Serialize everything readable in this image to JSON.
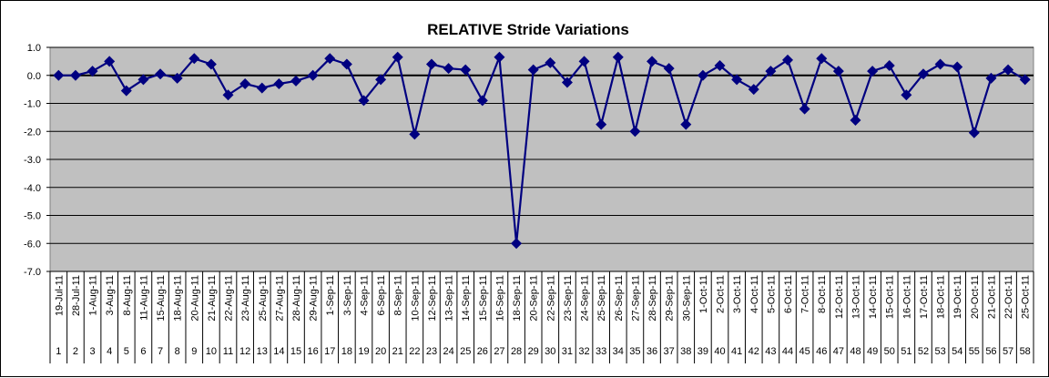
{
  "chart_data": {
    "type": "line",
    "title": "RELATIVE Stride Variations",
    "ylim": [
      -7.0,
      1.0
    ],
    "y_ticks": [
      "1.0",
      "0.0",
      "-1.0",
      "-2.0",
      "-3.0",
      "-4.0",
      "-5.0",
      "-6.0",
      "-7.0"
    ],
    "grid": true,
    "colors": {
      "plot_background": "#c0c0c0",
      "series_line": "#000080",
      "marker": "#000080",
      "gridline": "#000000"
    },
    "categories": [
      "19-Jul-11",
      "28-Jul-11",
      "1-Aug-11",
      "3-Aug-11",
      "8-Aug-11",
      "11-Aug-11",
      "15-Aug-11",
      "18-Aug-11",
      "20-Aug-11",
      "21-Aug-11",
      "22-Aug-11",
      "23-Aug-11",
      "25-Aug-11",
      "27-Aug-11",
      "28-Aug-11",
      "29-Aug-11",
      "1-Sep-11",
      "3-Sep-11",
      "4-Sep-11",
      "6-Sep-11",
      "8-Sep-11",
      "10-Sep-11",
      "12-Sep-11",
      "13-Sep-11",
      "14-Sep-11",
      "15-Sep-11",
      "16-Sep-11",
      "18-Sep-11",
      "20-Sep-11",
      "22-Sep-11",
      "23-Sep-11",
      "24-Sep-11",
      "25-Sep-11",
      "26-Sep-11",
      "27-Sep-11",
      "28-Sep-11",
      "29-Sep-11",
      "30-Sep-11",
      "1-Oct-11",
      "2-Oct-11",
      "3-Oct-11",
      "4-Oct-11",
      "5-Oct-11",
      "6-Oct-11",
      "7-Oct-11",
      "8-Oct-11",
      "12-Oct-11",
      "13-Oct-11",
      "14-Oct-11",
      "15-Oct-11",
      "16-Oct-11",
      "17-Oct-11",
      "18-Oct-11",
      "19-Oct-11",
      "20-Oct-11",
      "21-Oct-11",
      "22-Oct-11",
      "25-Oct-11"
    ],
    "index_labels": [
      "1",
      "2",
      "3",
      "4",
      "5",
      "6",
      "7",
      "8",
      "9",
      "10",
      "11",
      "12",
      "13",
      "14",
      "15",
      "16",
      "17",
      "18",
      "19",
      "20",
      "21",
      "22",
      "23",
      "24",
      "25",
      "26",
      "27",
      "28",
      "29",
      "30",
      "31",
      "32",
      "33",
      "34",
      "35",
      "36",
      "37",
      "38",
      "39",
      "40",
      "41",
      "42",
      "43",
      "44",
      "45",
      "46",
      "47",
      "48",
      "49",
      "50",
      "51",
      "52",
      "53",
      "54",
      "55",
      "56",
      "57",
      "58"
    ],
    "series": [
      {
        "values": [
          0.0,
          0.0,
          0.15,
          0.5,
          -0.55,
          -0.15,
          0.05,
          -0.1,
          0.6,
          0.4,
          -0.7,
          -0.3,
          -0.45,
          -0.3,
          -0.2,
          0.0,
          0.6,
          0.4,
          -0.9,
          -0.15,
          0.65,
          -2.1,
          0.4,
          0.25,
          0.2,
          -0.9,
          0.65,
          -6.0,
          0.2,
          0.45,
          -0.25,
          0.5,
          -1.75,
          0.65,
          -2.0,
          0.5,
          0.25,
          -1.75,
          0.0,
          0.35,
          -0.15,
          -0.5,
          0.15,
          0.55,
          -1.2,
          0.6,
          0.15,
          -1.6,
          0.15,
          0.35,
          -0.7,
          0.05,
          0.4,
          0.3,
          -2.05,
          -0.1,
          0.2,
          -0.15
        ]
      }
    ]
  }
}
